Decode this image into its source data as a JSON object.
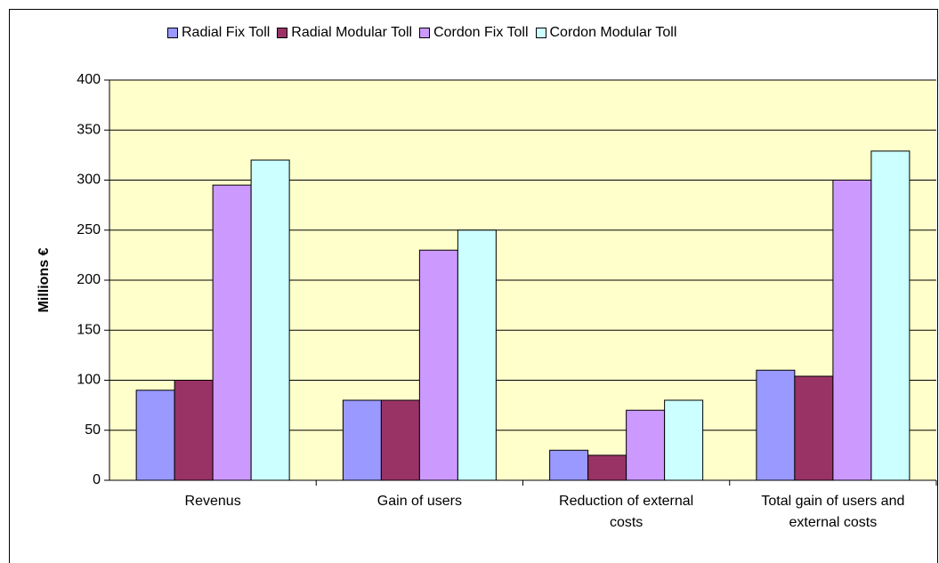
{
  "chart_data": {
    "type": "bar",
    "y_label": "Millions €",
    "categories": [
      "Revenus",
      "Gain of users",
      "Reduction of external costs",
      "Total gain of users and external costs"
    ],
    "series": [
      {
        "name": "Radial Fix Toll",
        "color": "#9999ff",
        "values": [
          90,
          80,
          30,
          110
        ]
      },
      {
        "name": "Radial Modular Toll",
        "color": "#993366",
        "values": [
          100,
          80,
          25,
          104
        ]
      },
      {
        "name": "Cordon Fix Toll",
        "color": "#cc99ff",
        "values": [
          295,
          230,
          70,
          300
        ]
      },
      {
        "name": "Cordon Modular Toll",
        "color": "#ccffff",
        "values": [
          320,
          250,
          80,
          329
        ]
      }
    ],
    "ylim": [
      0,
      400
    ],
    "yticks": [
      0,
      50,
      100,
      150,
      200,
      250,
      300,
      350,
      400
    ],
    "grid": true,
    "legend": "top",
    "plot_background": "#ffffcc"
  }
}
